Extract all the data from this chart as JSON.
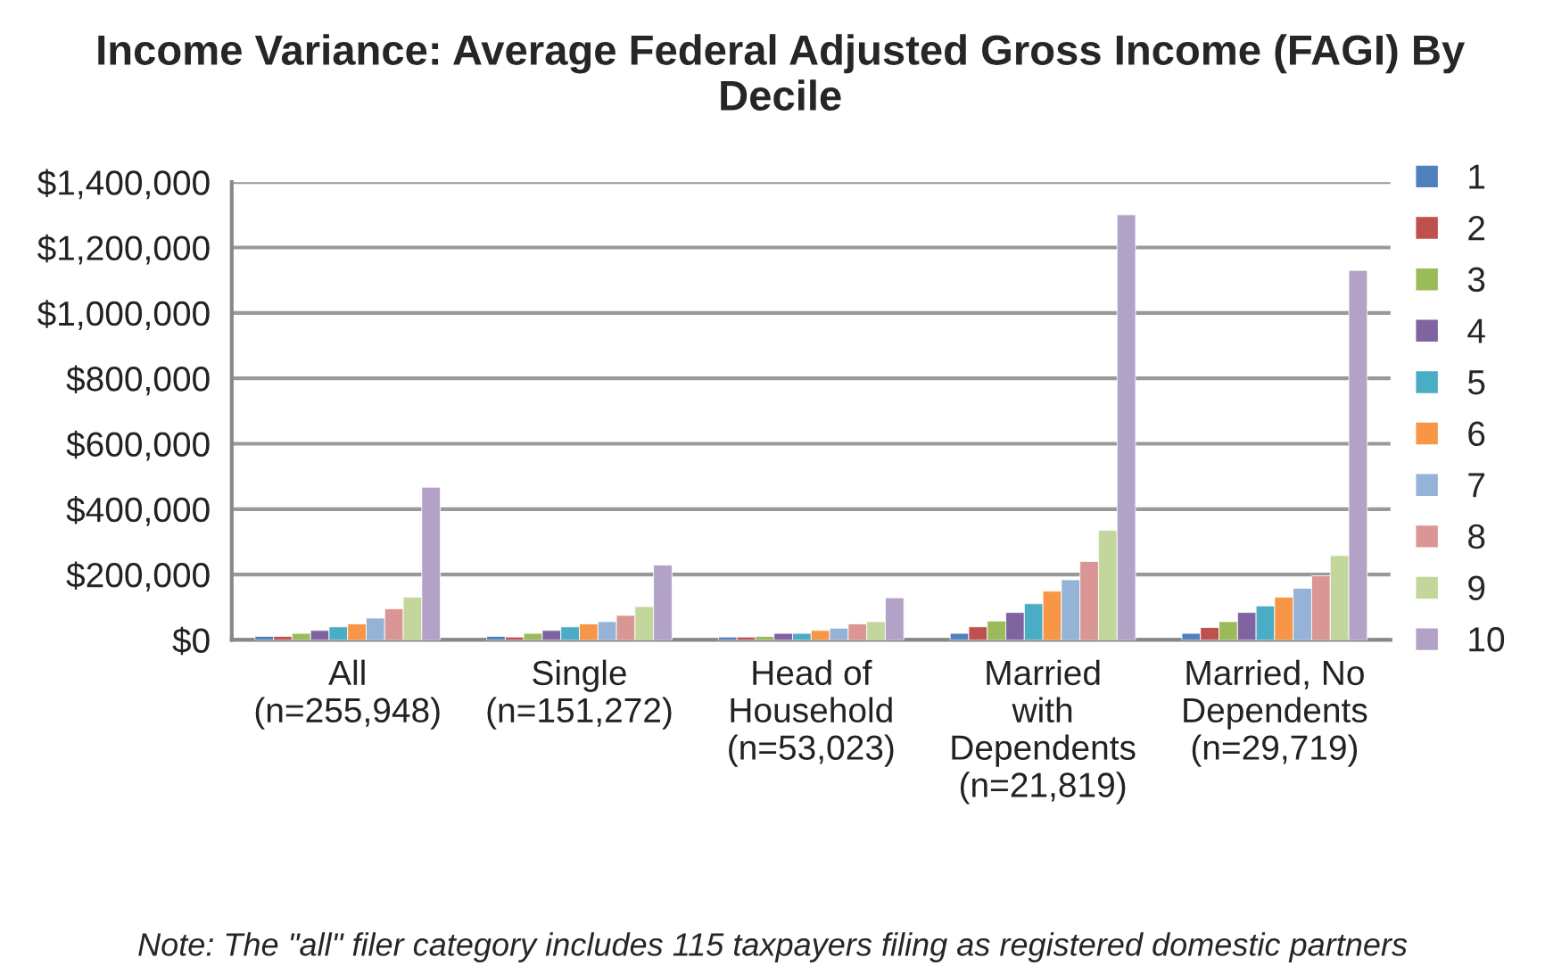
{
  "chart_data": {
    "type": "bar",
    "title": "Income Variance: Average Federal Adjusted Gross Income (FAGI) By Decile",
    "categories": [
      "All\n(n=255,948)",
      "Single\n(n=151,272)",
      "Head of\nHousehold\n(n=53,023)",
      "Married\nwith\nDependents\n(n=21,819)",
      "Married, No\nDependents\n(n=29,719)"
    ],
    "series": [
      {
        "name": "1",
        "color": "#4f81bd",
        "values": [
          11000,
          11000,
          9000,
          20000,
          20000
        ]
      },
      {
        "name": "2",
        "color": "#c0504d",
        "values": [
          11000,
          9000,
          9000,
          40000,
          38000
        ]
      },
      {
        "name": "3",
        "color": "#9bbb59",
        "values": [
          20000,
          20000,
          11000,
          58000,
          56000
        ]
      },
      {
        "name": "4",
        "color": "#8064a2",
        "values": [
          29000,
          29000,
          20000,
          84000,
          84000
        ]
      },
      {
        "name": "5",
        "color": "#4bacc6",
        "values": [
          40000,
          40000,
          20000,
          111000,
          104000
        ]
      },
      {
        "name": "6",
        "color": "#f79646",
        "values": [
          49000,
          49000,
          29000,
          149000,
          131000
        ]
      },
      {
        "name": "7",
        "color": "#95b3d7",
        "values": [
          67000,
          56000,
          36000,
          184000,
          158000
        ]
      },
      {
        "name": "8",
        "color": "#d99694",
        "values": [
          95000,
          75000,
          49000,
          240000,
          196000
        ]
      },
      {
        "name": "9",
        "color": "#c3d69b",
        "values": [
          131000,
          102000,
          56000,
          335000,
          258000
        ]
      },
      {
        "name": "10",
        "color": "#b2a2c7",
        "values": [
          467000,
          229000,
          129000,
          1300000,
          1130000
        ]
      }
    ],
    "ylim": [
      0,
      1400000
    ],
    "yticks": [
      {
        "value": 0,
        "label": "$0"
      },
      {
        "value": 200000,
        "label": "$200,000"
      },
      {
        "value": 400000,
        "label": "$400,000"
      },
      {
        "value": 600000,
        "label": "$600,000"
      },
      {
        "value": 800000,
        "label": "$800,000"
      },
      {
        "value": 1000000,
        "label": "$1,000,000"
      },
      {
        "value": 1200000,
        "label": "$1,200,000"
      },
      {
        "value": 1400000,
        "label": "$1,400,000"
      }
    ],
    "grid": "y",
    "legend": "right",
    "annotations": [
      "Note: The \"all\" filer category includes 115 taxpayers filing as registered domestic partners"
    ]
  }
}
